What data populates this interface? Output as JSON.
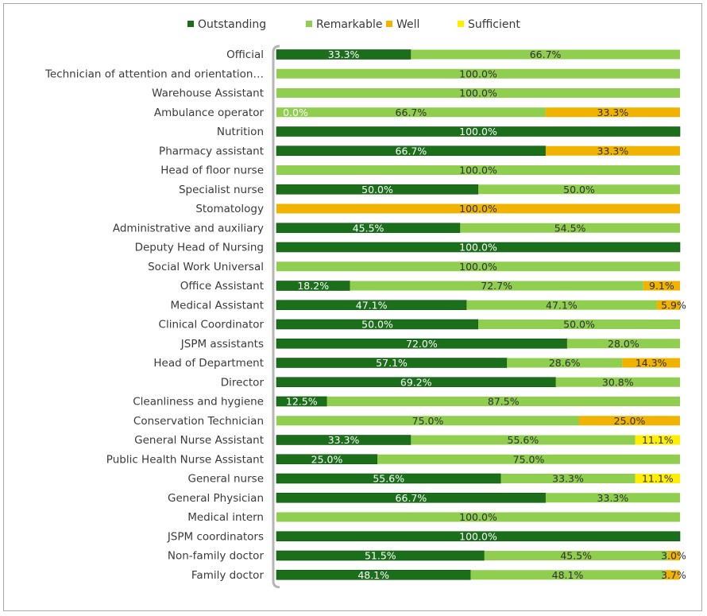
{
  "chart_data": {
    "type": "bar",
    "orientation": "horizontal",
    "stacked": "100%",
    "title": "",
    "xlabel": "",
    "ylabel": "",
    "xlim": [
      0,
      100
    ],
    "legend_position": "top",
    "categories": [
      "Official",
      "Technician of attention and orientation…",
      "Warehouse Assistant",
      "Ambulance operator",
      "Nutrition",
      "Pharmacy assistant",
      "Head of floor nurse",
      "Specialist nurse",
      "Stomatology",
      "Administrative and auxiliary",
      "Deputy Head of Nursing",
      "Social Work Universal",
      "Office Assistant",
      "Medical Assistant",
      "Clinical Coordinator",
      "JSPM assistants",
      "Head of Department",
      "Director",
      "Cleanliness and hygiene",
      "Conservation Technician",
      "General Nurse Assistant",
      "Public Health Nurse Assistant",
      "General nurse",
      "General Physician",
      "Medical intern",
      "JSPM coordinators",
      "Non-family doctor",
      "Family doctor"
    ],
    "series": [
      {
        "name": "Outstanding",
        "color": "#1b6f1b",
        "values": [
          33.3,
          null,
          null,
          0.0,
          100.0,
          66.7,
          null,
          50.0,
          null,
          45.5,
          100.0,
          null,
          18.2,
          47.1,
          50.0,
          72.0,
          57.1,
          69.2,
          12.5,
          null,
          33.3,
          25.0,
          55.6,
          66.7,
          null,
          100.0,
          51.5,
          48.1
        ],
        "labels": [
          "33.3%",
          "",
          "",
          "0.0%",
          "100.0%",
          "66.7%",
          "",
          "50.0%",
          "",
          "45.5%",
          "100.0%",
          "",
          "18.2%",
          "47.1%",
          "50.0%",
          "72.0%",
          "57.1%",
          "69.2%",
          "12.5%",
          "",
          "33.3%",
          "25.0%",
          "55.6%",
          "66.7%",
          "",
          "100.0%",
          "51.5%",
          "48.1%"
        ]
      },
      {
        "name": "Remarkable",
        "color": "#8fce4f",
        "values": [
          66.7,
          100.0,
          100.0,
          66.7,
          null,
          null,
          100.0,
          50.0,
          null,
          54.5,
          null,
          100.0,
          72.7,
          47.1,
          50.0,
          28.0,
          28.6,
          30.8,
          87.5,
          75.0,
          55.6,
          75.0,
          33.3,
          33.3,
          100.0,
          null,
          45.5,
          48.1
        ],
        "labels": [
          "66.7%",
          "100.0%",
          "100.0%",
          "66.7%",
          "",
          "",
          "100.0%",
          "50.0%",
          "",
          "54.5%",
          "",
          "100.0%",
          "72.7%",
          "47.1%",
          "50.0%",
          "28.0%",
          "28.6%",
          "30.8%",
          "87.5%",
          "75.0%",
          "55.6%",
          "75.0%",
          "33.3%",
          "33.3%",
          "100.0%",
          "",
          "45.5%",
          "48.1%"
        ]
      },
      {
        "name": "Well",
        "color": "#f0b400",
        "values": [
          null,
          null,
          null,
          33.3,
          null,
          33.3,
          null,
          null,
          100.0,
          null,
          null,
          null,
          9.1,
          5.9,
          null,
          null,
          14.3,
          null,
          null,
          25.0,
          null,
          null,
          null,
          null,
          null,
          null,
          3.0,
          3.7
        ],
        "labels": [
          "",
          "",
          "",
          "33.3%",
          "",
          "33.3%",
          "",
          "",
          "100.0%",
          "",
          "",
          "",
          "9.1%",
          "5.9%",
          "",
          "",
          "14.3%",
          "",
          "",
          "25.0%",
          "",
          "",
          "",
          "",
          "",
          "",
          "3.0%",
          "3.7%"
        ]
      },
      {
        "name": "Sufficient",
        "color": "#ffee00",
        "values": [
          null,
          null,
          null,
          null,
          null,
          null,
          null,
          null,
          null,
          null,
          null,
          null,
          null,
          null,
          null,
          null,
          null,
          null,
          null,
          null,
          11.1,
          null,
          11.1,
          null,
          null,
          null,
          null,
          null
        ],
        "labels": [
          "",
          "",
          "",
          "",
          "",
          "",
          "",
          "",
          "",
          "",
          "",
          "",
          "",
          "",
          "",
          "",
          "",
          "",
          "",
          "",
          "11.1%",
          "",
          "11.1%",
          "",
          "",
          "",
          "",
          ""
        ]
      }
    ]
  }
}
